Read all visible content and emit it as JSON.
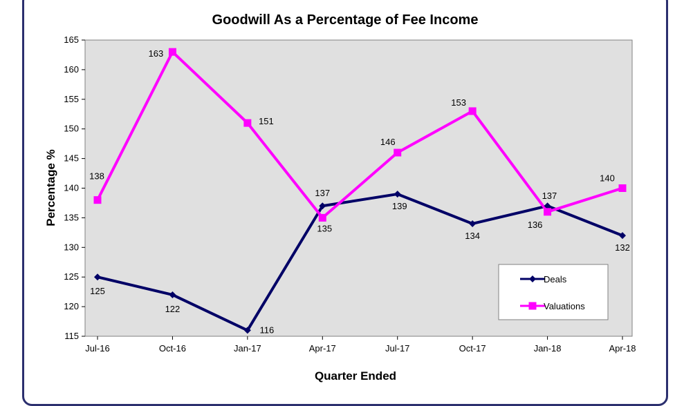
{
  "chart_data": {
    "type": "line",
    "title": "Goodwill As a Percentage of Fee Income",
    "xlabel": "Quarter Ended",
    "ylabel": "Percentage %",
    "categories": [
      "Jul-16",
      "Oct-16",
      "Jan-17",
      "Apr-17",
      "Jul-17",
      "Oct-17",
      "Jan-18",
      "Apr-18"
    ],
    "ylim": [
      115,
      165
    ],
    "yticks": [
      115,
      120,
      125,
      130,
      135,
      140,
      145,
      150,
      155,
      160,
      165
    ],
    "grid": false,
    "legend": "bottom-right",
    "plot_background": "#e0e0e0",
    "series": [
      {
        "name": "Deals",
        "color": "#000066",
        "marker": "diamond",
        "values": [
          125,
          122,
          116,
          137,
          139,
          134,
          137,
          132
        ]
      },
      {
        "name": "Valuations",
        "color": "#ff00ff",
        "marker": "square",
        "values": [
          138,
          163,
          151,
          135,
          146,
          153,
          136,
          140
        ]
      }
    ]
  }
}
